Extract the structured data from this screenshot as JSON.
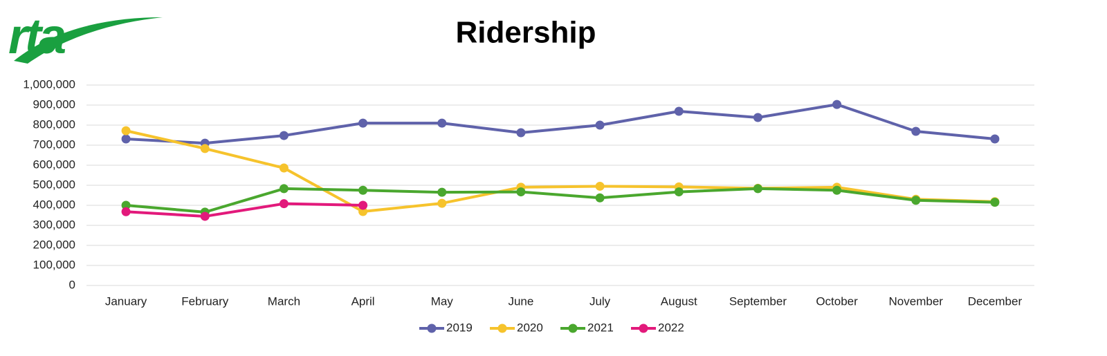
{
  "logo": "rta",
  "chart_data": {
    "type": "line",
    "title": "Ridership",
    "categories": [
      "January",
      "February",
      "March",
      "April",
      "May",
      "June",
      "July",
      "August",
      "September",
      "October",
      "November",
      "December"
    ],
    "series": [
      {
        "name": "2019",
        "color": "#5f62aa",
        "values": [
          731000,
          710000,
          748000,
          810000,
          810000,
          762000,
          800000,
          869000,
          838000,
          903000,
          769000,
          731000
        ]
      },
      {
        "name": "2020",
        "color": "#f6c32c",
        "values": [
          772000,
          683000,
          586000,
          369000,
          410000,
          490000,
          495000,
          492000,
          485000,
          490000,
          430000,
          418000
        ]
      },
      {
        "name": "2021",
        "color": "#4aa72e",
        "values": [
          400000,
          366000,
          483000,
          475000,
          465000,
          467000,
          437000,
          467000,
          483000,
          475000,
          425000,
          415000
        ]
      },
      {
        "name": "2022",
        "color": "#e2197b",
        "values": [
          368000,
          345000,
          408000,
          400000,
          null,
          null,
          null,
          null,
          null,
          null,
          null,
          null
        ]
      }
    ],
    "ylim": [
      0,
      1000000
    ],
    "yticks": [
      0,
      {
        "value": 100000,
        "label": "100,000"
      },
      {
        "value": 200000,
        "label": "200,000"
      },
      {
        "value": 300000,
        "label": "300,000"
      },
      {
        "value": 400000,
        "label": "400,000"
      },
      {
        "value": 500000,
        "label": "500,000"
      },
      {
        "value": 600000,
        "label": "600,000"
      },
      {
        "value": 700000,
        "label": "700,000"
      },
      {
        "value": 800000,
        "label": "800,000"
      },
      {
        "value": 900000,
        "label": "900,000"
      },
      {
        "value": 1000000,
        "label": "1,000,000"
      }
    ],
    "grid": true,
    "legend": "bottom"
  }
}
